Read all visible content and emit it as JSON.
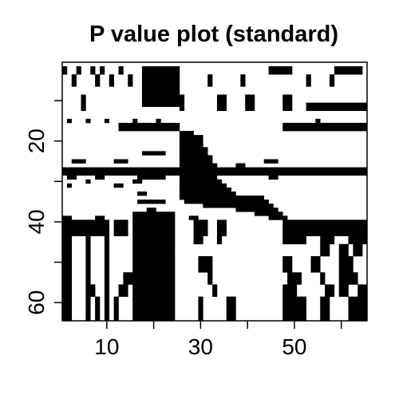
{
  "chart_data": {
    "type": "heatmap",
    "title": "P value plot (standard)",
    "xlabel": "",
    "ylabel": "",
    "xlim": [
      0.5,
      65.5
    ],
    "ylim": [
      64.5,
      0.5
    ],
    "y_axis_reversed": true,
    "x_ticks": [
      10,
      20,
      30,
      40,
      50,
      60
    ],
    "x_tick_labels": [
      "10",
      "",
      "30",
      "",
      "50",
      ""
    ],
    "y_ticks": [
      10,
      20,
      30,
      40,
      50,
      60
    ],
    "y_tick_labels": [
      "",
      "20",
      "",
      "40",
      "",
      "60"
    ],
    "color_significant": "#000000",
    "color_background": "#ffffff",
    "n_cols": 65,
    "n_rows": 64,
    "significant_cells": [
      {
        "rows": [
          2,
          3,
          4,
          5,
          6,
          7,
          8,
          9,
          10,
          11
        ],
        "cols": [
          [
            18,
            25
          ]
        ]
      },
      {
        "rows": [
          2,
          3
        ],
        "cols": [
          [
            1,
            1
          ],
          [
            4,
            4
          ],
          [
            7,
            7
          ],
          [
            9,
            9
          ],
          [
            13,
            13
          ],
          [
            45,
            49
          ],
          [
            59,
            64
          ]
        ]
      },
      {
        "rows": [
          4,
          5,
          6
        ],
        "cols": [
          [
            3,
            3
          ],
          [
            8,
            8
          ],
          [
            11,
            11
          ],
          [
            15,
            15
          ],
          [
            32,
            32
          ],
          [
            39,
            39
          ],
          [
            53,
            53
          ],
          [
            58,
            58
          ]
        ]
      },
      {
        "rows": [
          9,
          10,
          11,
          12
        ],
        "cols": [
          [
            5,
            5
          ],
          [
            26,
            26
          ],
          [
            34,
            35
          ],
          [
            40,
            41
          ],
          [
            48,
            49
          ]
        ]
      },
      {
        "rows": [
          11,
          12
        ],
        "cols": [
          [
            53,
            65
          ]
        ]
      },
      {
        "rows": [
          15
        ],
        "cols": [
          [
            2,
            2
          ],
          [
            6,
            6
          ],
          [
            10,
            10
          ],
          [
            16,
            16
          ],
          [
            21,
            21
          ],
          [
            55,
            55
          ]
        ]
      },
      {
        "rows": [
          16,
          17
        ],
        "cols": [
          [
            13,
            25
          ],
          [
            48,
            65
          ]
        ]
      },
      {
        "rows": [
          18
        ],
        "cols": [
          [
            26,
            28
          ]
        ]
      },
      {
        "rows": [
          19
        ],
        "cols": [
          [
            26,
            30
          ]
        ]
      },
      {
        "rows": [
          20
        ],
        "cols": [
          [
            26,
            30
          ]
        ]
      },
      {
        "rows": [
          21
        ],
        "cols": [
          [
            26,
            30
          ]
        ]
      },
      {
        "rows": [
          22
        ],
        "cols": [
          [
            26,
            31
          ]
        ]
      },
      {
        "rows": [
          23
        ],
        "cols": [
          [
            18,
            22
          ],
          [
            26,
            31
          ]
        ]
      },
      {
        "rows": [
          24
        ],
        "cols": [
          [
            26,
            32
          ]
        ]
      },
      {
        "rows": [
          25
        ],
        "cols": [
          [
            3,
            5
          ],
          [
            12,
            14
          ],
          [
            26,
            32
          ],
          [
            44,
            46
          ]
        ]
      },
      {
        "rows": [
          26
        ],
        "cols": [
          [
            26,
            33
          ],
          [
            38,
            39
          ]
        ]
      },
      {
        "rows": [
          27,
          28
        ],
        "cols": [
          [
            0,
            65
          ]
        ]
      },
      {
        "rows": [
          29
        ],
        "cols": [
          [
            2,
            3
          ],
          [
            8,
            9
          ],
          [
            17,
            22
          ],
          [
            26,
            33
          ],
          [
            45,
            46
          ]
        ]
      },
      {
        "rows": [
          30
        ],
        "cols": [
          [
            6,
            6
          ],
          [
            16,
            17
          ],
          [
            26,
            34
          ]
        ]
      },
      {
        "rows": [
          31
        ],
        "cols": [
          [
            2,
            2
          ],
          [
            12,
            13
          ],
          [
            26,
            35
          ]
        ]
      },
      {
        "rows": [
          32
        ],
        "cols": [
          [
            26,
            36
          ]
        ]
      },
      {
        "rows": [
          33
        ],
        "cols": [
          [
            17,
            18
          ],
          [
            26,
            37
          ]
        ]
      },
      {
        "rows": [
          34
        ],
        "cols": [
          [
            26,
            43
          ]
        ]
      },
      {
        "rows": [
          35
        ],
        "cols": [
          [
            17,
            22
          ],
          [
            27,
            44
          ]
        ]
      },
      {
        "rows": [
          36
        ],
        "cols": [
          [
            31,
            45
          ]
        ]
      },
      {
        "rows": [
          37
        ],
        "cols": [
          [
            38,
            46
          ],
          [
            19,
            20
          ]
        ]
      },
      {
        "rows": [
          38
        ],
        "cols": [
          [
            42,
            47
          ],
          [
            16,
            24
          ]
        ]
      },
      {
        "rows": [
          39
        ],
        "cols": [
          [
            45,
            48
          ],
          [
            0,
            2
          ],
          [
            8,
            9
          ],
          [
            16,
            24
          ],
          [
            28,
            29
          ]
        ]
      },
      {
        "rows": [
          40,
          41,
          42,
          43,
          44,
          45,
          46,
          47,
          48,
          49,
          50,
          51,
          52,
          53,
          54,
          55,
          56,
          57,
          58,
          59,
          60,
          61,
          62,
          63,
          64
        ],
        "cols": [
          [
            16,
            24
          ]
        ]
      },
      {
        "rows": [
          40,
          41,
          42,
          43,
          44,
          45,
          46,
          47,
          48,
          49,
          50,
          51,
          52,
          53,
          54,
          55,
          56,
          57,
          58,
          59,
          60,
          61,
          62,
          63,
          64
        ],
        "cols": [
          [
            1,
            1
          ],
          [
            2,
            2
          ],
          [
            6,
            6
          ],
          [
            10,
            10
          ]
        ]
      },
      {
        "rows": [
          40,
          41,
          42,
          43
        ],
        "cols": [
          [
            3,
            9
          ],
          [
            12,
            14
          ],
          [
            29,
            31
          ],
          [
            34,
            35
          ],
          [
            48,
            65
          ]
        ]
      },
      {
        "rows": [
          44,
          45
        ],
        "cols": [
          [
            29,
            30
          ],
          [
            34,
            34
          ],
          [
            48,
            52
          ],
          [
            56,
            58
          ],
          [
            62,
            65
          ]
        ]
      },
      {
        "rows": [
          46,
          47,
          48
        ],
        "cols": [
          [
            56,
            57
          ],
          [
            60,
            61
          ],
          [
            63,
            64
          ]
        ]
      },
      {
        "rows": [
          49,
          50,
          51,
          52
        ],
        "cols": [
          [
            30,
            32
          ],
          [
            48,
            49
          ],
          [
            54,
            55
          ],
          [
            60,
            62
          ]
        ]
      },
      {
        "rows": [
          53,
          54,
          55
        ],
        "cols": [
          [
            14,
            15
          ],
          [
            32,
            32
          ],
          [
            49,
            51
          ],
          [
            56,
            56
          ],
          [
            60,
            63
          ]
        ]
      },
      {
        "rows": [
          56,
          57,
          58
        ],
        "cols": [
          [
            7,
            7
          ],
          [
            13,
            14
          ],
          [
            33,
            33
          ],
          [
            48,
            50
          ],
          [
            57,
            58
          ],
          [
            60,
            61
          ],
          [
            64,
            65
          ]
        ]
      },
      {
        "rows": [
          59,
          60,
          61,
          62,
          63,
          64
        ],
        "cols": [
          [
            8,
            8
          ],
          [
            12,
            12
          ],
          [
            30,
            30
          ],
          [
            36,
            37
          ],
          [
            48,
            52
          ],
          [
            56,
            57
          ],
          [
            62,
            65
          ]
        ]
      }
    ]
  }
}
